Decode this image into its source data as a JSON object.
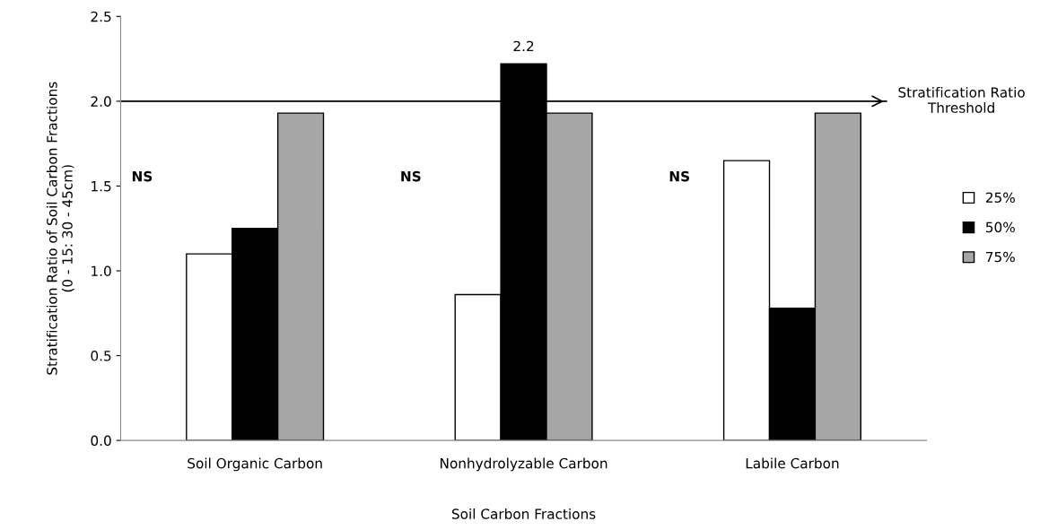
{
  "chart_data": {
    "type": "bar",
    "categories": [
      "Soil Organic Carbon",
      "Nonhydrolyzable Carbon",
      "Labile Carbon"
    ],
    "xlabel": "Soil Carbon Fractions",
    "ylabel": "Stratification Ratio of Soil Carbon Fractions\n(0 - 15: 30 - 45cm)",
    "series": [
      {
        "name": "25%",
        "color": "#ffffff",
        "values": [
          1.1,
          0.86,
          1.65
        ]
      },
      {
        "name": "50%",
        "color": "#000000",
        "values": [
          1.25,
          2.22,
          0.78
        ],
        "value_labels": [
          null,
          "2.2",
          null
        ]
      },
      {
        "name": "75%",
        "color": "#a6a6a6",
        "values": [
          1.93,
          1.93,
          1.93
        ]
      }
    ],
    "ylim": [
      0,
      2.5
    ],
    "yticks": [
      {
        "value": 0,
        "label": "0.0"
      },
      0.5,
      {
        "value": 1,
        "label": "1.0"
      },
      1.5,
      {
        "value": 2,
        "label": "2.0"
      },
      2.5
    ],
    "ref_lines": [
      {
        "axis": "y",
        "value": 2.0,
        "label": "Stratification Ratio\nThreshold",
        "color": "#000000"
      }
    ],
    "annotations": [
      "NS",
      "NS",
      "NS"
    ],
    "grid": false,
    "legend": "right"
  }
}
